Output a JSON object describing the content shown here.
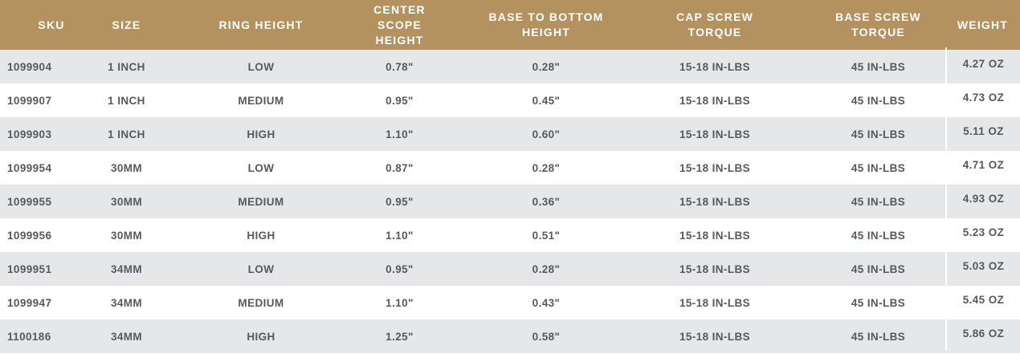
{
  "colors": {
    "header_bg": "#b39260",
    "header_text": "#ffffff",
    "stripe": "#e6e7e9",
    "text": "#555a5f"
  },
  "headers": [
    [
      "SKU"
    ],
    [
      "SIZE"
    ],
    [
      "RING HEIGHT"
    ],
    [
      "CENTER SCOPE",
      "HEIGHT"
    ],
    [
      "BASE TO BOTTOM",
      "HEIGHT"
    ],
    [
      "CAP SCREW",
      "TORQUE"
    ],
    [
      "BASE SCREW",
      "TORQUE"
    ],
    [
      "WEIGHT"
    ]
  ],
  "rows": [
    [
      "1099904",
      "1 INCH",
      "LOW",
      "0.78\"",
      "0.28\"",
      "15-18 IN-LBS",
      "45 IN-LBS",
      "4.27 OZ"
    ],
    [
      "1099907",
      "1 INCH",
      "MEDIUM",
      "0.95\"",
      "0.45\"",
      "15-18 IN-LBS",
      "45 IN-LBS",
      "4.73 OZ"
    ],
    [
      "1099903",
      "1 INCH",
      "HIGH",
      "1.10\"",
      "0.60\"",
      "15-18 IN-LBS",
      "45 IN-LBS",
      "5.11 OZ"
    ],
    [
      "1099954",
      "30MM",
      "LOW",
      "0.87\"",
      "0.28\"",
      "15-18 IN-LBS",
      "45 IN-LBS",
      "4.71 OZ"
    ],
    [
      "1099955",
      "30MM",
      "MEDIUM",
      "0.95\"",
      "0.36\"",
      "15-18 IN-LBS",
      "45 IN-LBS",
      "4.93 OZ"
    ],
    [
      "1099956",
      "30MM",
      "HIGH",
      "1.10\"",
      "0.51\"",
      "15-18 IN-LBS",
      "45 IN-LBS",
      "5.23 OZ"
    ],
    [
      "1099951",
      "34MM",
      "LOW",
      "0.95\"",
      "0.28\"",
      "15-18 IN-LBS",
      "45 IN-LBS",
      "5.03 OZ"
    ],
    [
      "1099947",
      "34MM",
      "MEDIUM",
      "1.10\"",
      "0.43\"",
      "15-18 IN-LBS",
      "45 IN-LBS",
      "5.45 OZ"
    ],
    [
      "1100186",
      "34MM",
      "HIGH",
      "1.25\"",
      "0.58\"",
      "15-18 IN-LBS",
      "45 IN-LBS",
      "5.86 OZ"
    ]
  ]
}
